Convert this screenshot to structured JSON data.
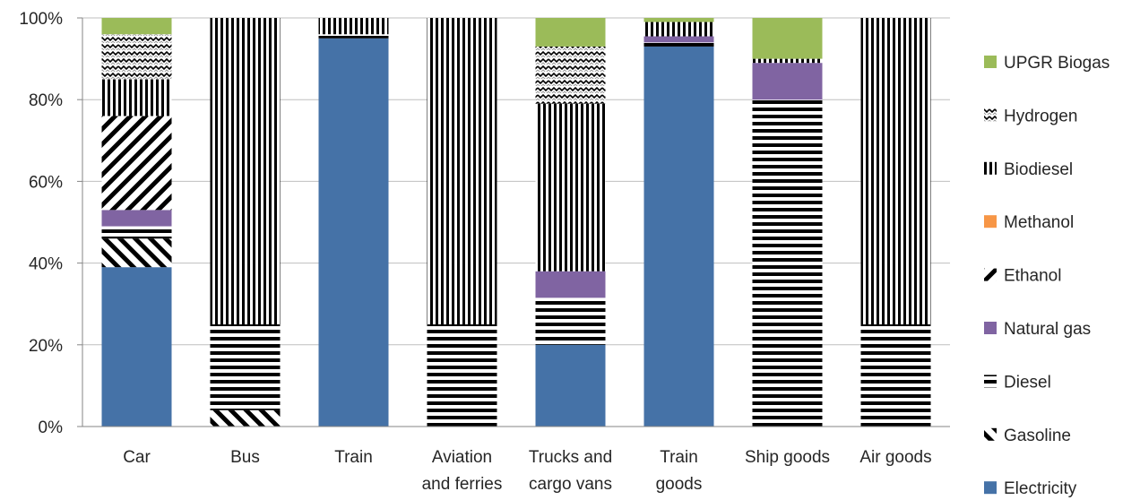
{
  "chart_data": {
    "type": "bar",
    "stacked": true,
    "normalized": true,
    "title": "",
    "xlabel": "",
    "ylabel": "",
    "ylim": [
      0,
      100
    ],
    "y_tick_labels": [
      "0%",
      "20%",
      "40%",
      "60%",
      "80%",
      "100%"
    ],
    "y_ticks": [
      0,
      20,
      40,
      60,
      80,
      100
    ],
    "grid": true,
    "legend_position": "right",
    "categories": [
      [
        "Car"
      ],
      [
        "Bus"
      ],
      [
        "Train"
      ],
      [
        "Aviation",
        "and ferries"
      ],
      [
        "Trucks and",
        "cargo vans"
      ],
      [
        "Train",
        "goods"
      ],
      [
        "Ship goods"
      ],
      [
        "Air goods"
      ]
    ],
    "series": [
      {
        "name": "Electricity",
        "pattern": "solid",
        "color": "#4572A7",
        "values": [
          39,
          0,
          95,
          0,
          20,
          93,
          0,
          0
        ]
      },
      {
        "name": "Gasoline",
        "pattern": "diagonal-back",
        "color": "#000000",
        "values": [
          7,
          4,
          0,
          0,
          0,
          0,
          0,
          0
        ]
      },
      {
        "name": "Diesel",
        "pattern": "horizontal",
        "color": "#000000",
        "values": [
          3,
          21,
          1,
          25,
          11.5,
          1,
          80,
          25
        ]
      },
      {
        "name": "Natural gas",
        "pattern": "solid",
        "color": "#8064A2",
        "values": [
          4,
          0,
          0,
          0,
          6.5,
          1.5,
          9,
          0
        ]
      },
      {
        "name": "Ethanol",
        "pattern": "diagonal-forward",
        "color": "#000000",
        "values": [
          23,
          0,
          0,
          0,
          0,
          0,
          0,
          0
        ]
      },
      {
        "name": "Methanol",
        "pattern": "solid",
        "color": "#F79646",
        "values": [
          0,
          0,
          0,
          0,
          0,
          0,
          0,
          0
        ]
      },
      {
        "name": "Biodiesel",
        "pattern": "vertical",
        "color": "#000000",
        "values": [
          9,
          75,
          4,
          75,
          41,
          3.5,
          1,
          75
        ]
      },
      {
        "name": "Hydrogen",
        "pattern": "wave",
        "color": "#000000",
        "values": [
          11,
          0,
          0,
          0,
          14,
          0,
          0,
          0
        ]
      },
      {
        "name": "UPGR Biogas",
        "pattern": "solid",
        "color": "#9BBB59",
        "values": [
          4,
          0,
          0,
          0,
          7,
          1,
          10,
          0
        ]
      }
    ],
    "legend_order": [
      "UPGR Biogas",
      "Hydrogen",
      "Biodiesel",
      "Methanol",
      "Ethanol",
      "Natural gas",
      "Diesel",
      "Gasoline",
      "Electricity"
    ]
  }
}
